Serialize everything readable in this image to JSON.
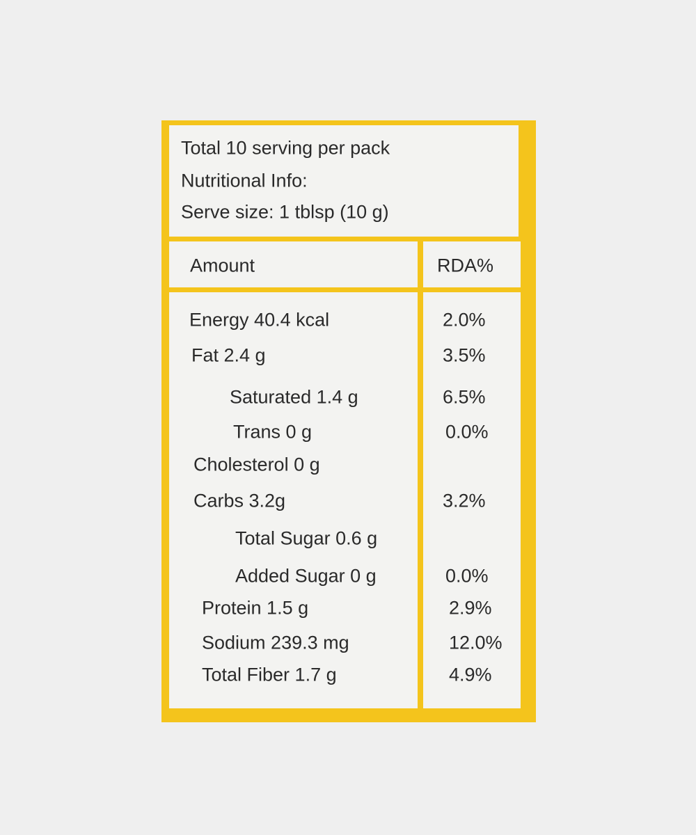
{
  "header": {
    "lines": [
      "Total 10 serving per pack",
      "Nutritional Info:",
      "Serve size: 1 tblsp (10 g)"
    ]
  },
  "table": {
    "columns": [
      "Amount",
      "RDA%"
    ],
    "rows": [
      {
        "amount": "Energy 40.4 kcal",
        "rda": "2.0%"
      },
      {
        "amount": "Fat 2.4 g",
        "rda": "3.5%"
      },
      {
        "amount": "Saturated 1.4 g",
        "rda": "6.5%"
      },
      {
        "amount": "Trans 0 g",
        "rda": "0.0%"
      },
      {
        "amount": "Cholesterol 0 g"
      },
      {
        "amount": "Carbs 3.2g",
        "rda": "3.2%"
      },
      {
        "amount": "Total Sugar 0.6 g"
      },
      {
        "amount": "Added Sugar 0 g",
        "rda": "0.0%"
      },
      {
        "amount": "Protein 1.5 g",
        "rda": "2.9%"
      },
      {
        "amount": "Sodium 239.3 mg",
        "rda": "12.0%"
      },
      {
        "amount": "Total Fiber 1.7 g",
        "rda": "4.9%"
      }
    ]
  }
}
